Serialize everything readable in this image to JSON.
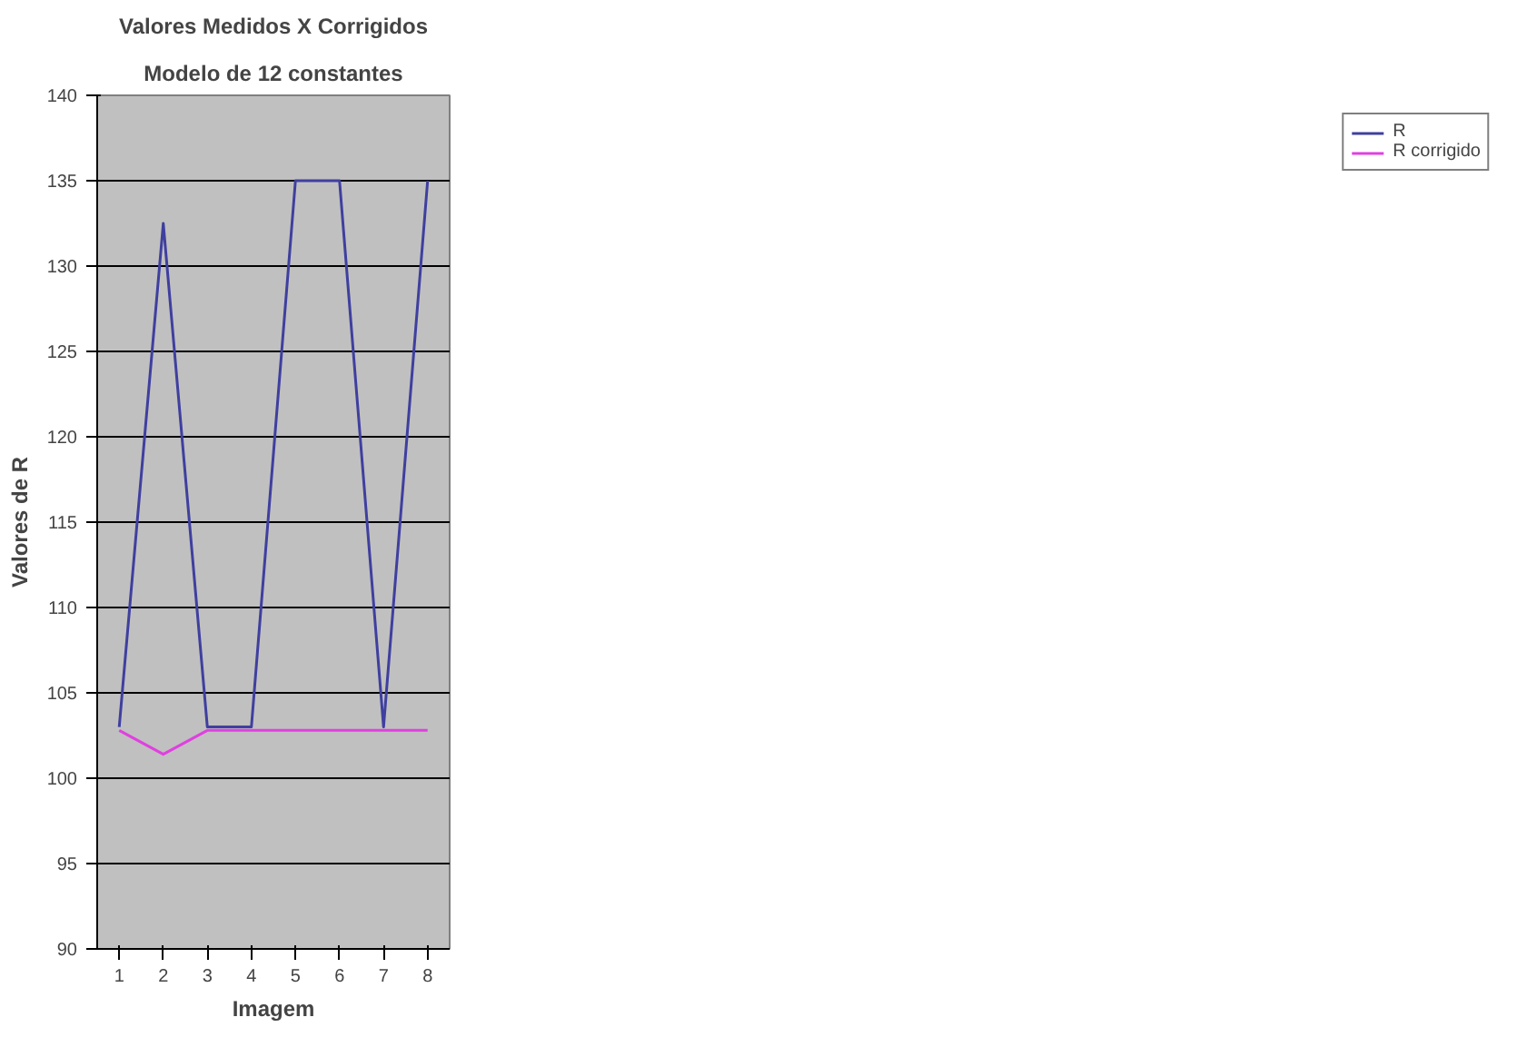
{
  "chart_data": {
    "type": "line",
    "title": "Valores Medidos X Corrigidos",
    "subtitle": "Modelo de 12 constantes",
    "xlabel": "Imagem",
    "ylabel": "Valores de R",
    "categories": [
      "1",
      "2",
      "3",
      "4",
      "5",
      "6",
      "7",
      "8"
    ],
    "series": [
      {
        "name": "R",
        "color": "#3f3f9f",
        "values": [
          103,
          132.5,
          103,
          103,
          135,
          135,
          103,
          135
        ]
      },
      {
        "name": "R corrigido",
        "color": "#e040e0",
        "values": [
          102.8,
          101.4,
          102.8,
          102.8,
          102.8,
          102.8,
          102.8,
          102.8
        ]
      }
    ],
    "ylim": [
      90,
      140
    ],
    "yticks": [
      90,
      95,
      100,
      105,
      110,
      115,
      120,
      125,
      130,
      135,
      140
    ],
    "grid": "y",
    "legend": "right",
    "marker": "none",
    "line_style": "solid"
  }
}
